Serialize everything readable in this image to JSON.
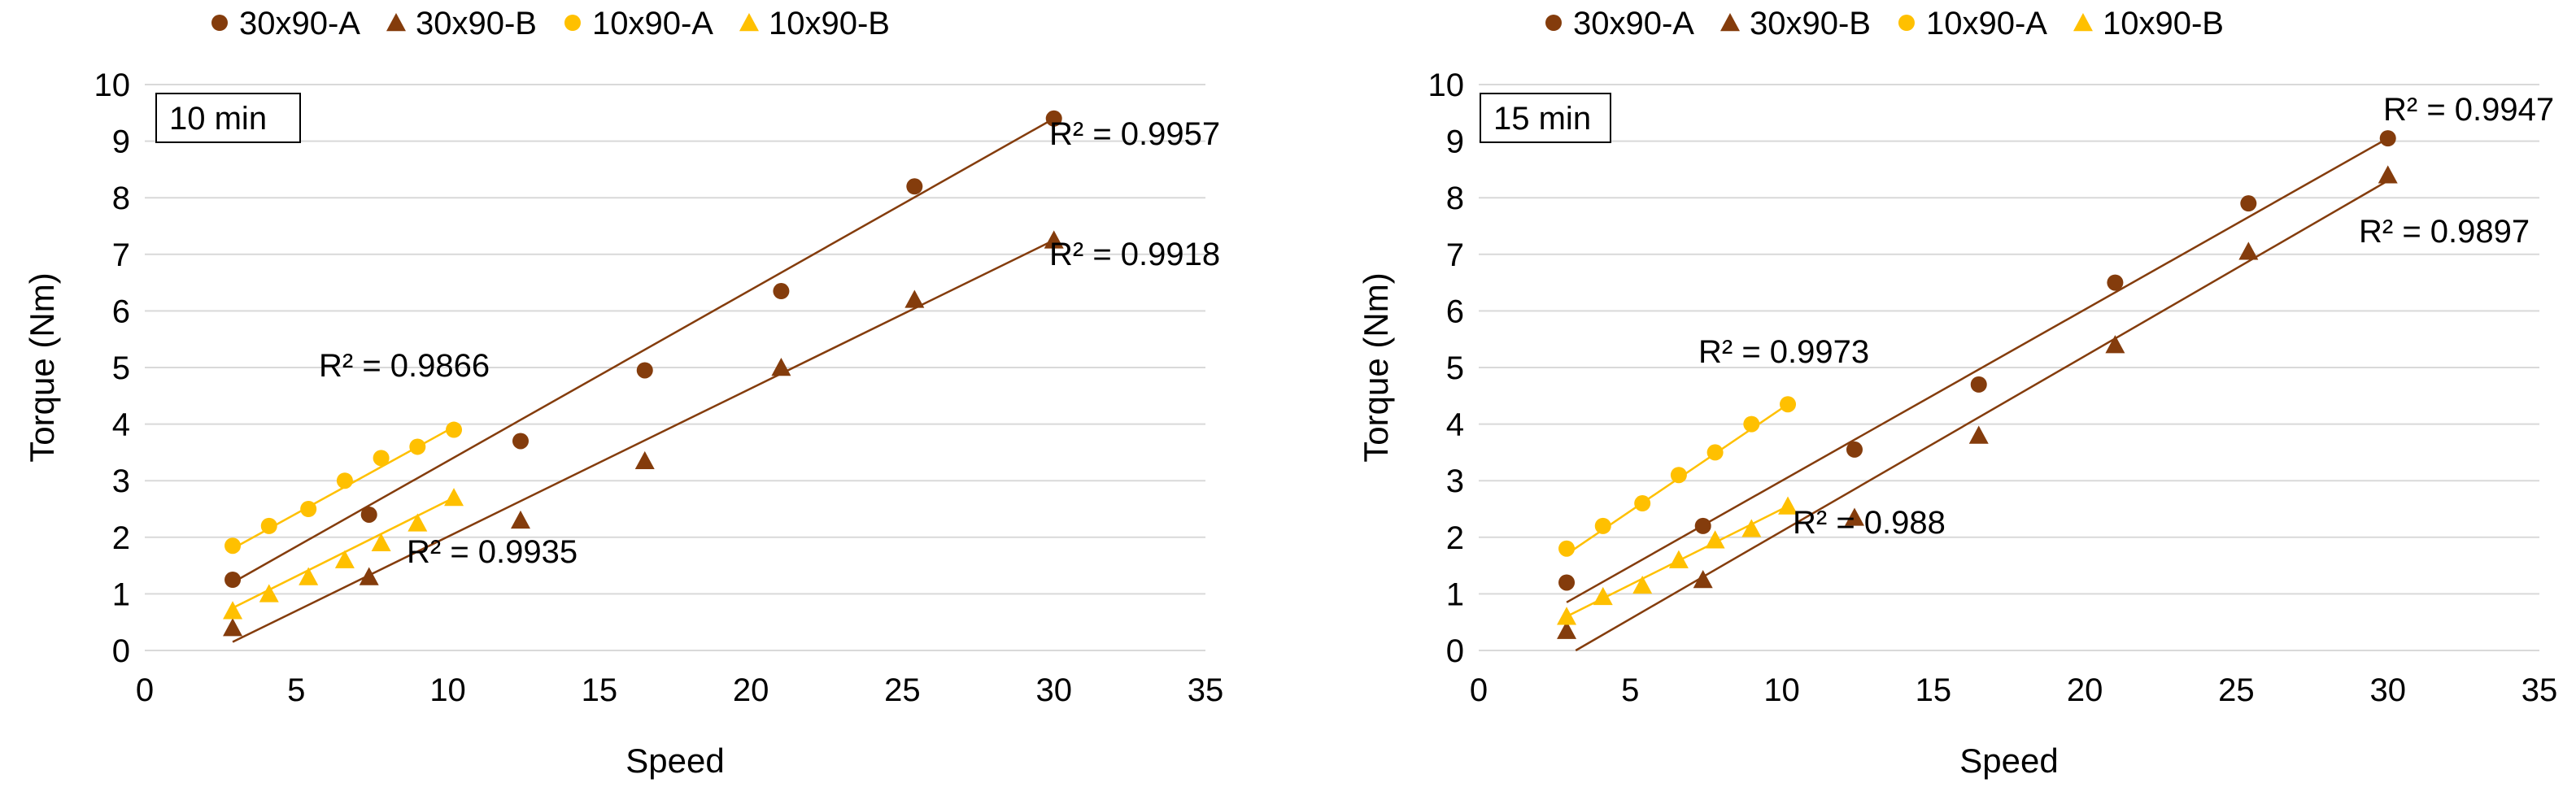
{
  "chart_data": [
    {
      "type": "scatter",
      "panel_label": "10 min",
      "xlabel": "Speed",
      "ylabel": "Torque (Nm)",
      "xlim": [
        0,
        35
      ],
      "ylim": [
        0,
        10
      ],
      "xticks": [
        "0",
        "5",
        "10",
        "15",
        "20",
        "25",
        "30",
        "35"
      ],
      "yticks": [
        "0",
        "1",
        "2",
        "3",
        "4",
        "5",
        "6",
        "7",
        "8",
        "9",
        "10"
      ],
      "grid": "horizontal",
      "legend_position": "top",
      "series": [
        {
          "name": "30x90-A",
          "marker": "circle",
          "color": "#843C0C",
          "x": [
            2.9,
            7.4,
            12.4,
            16.5,
            21.0,
            25.4,
            30.0
          ],
          "y": [
            1.25,
            2.4,
            3.7,
            4.95,
            6.35,
            8.2,
            9.4
          ],
          "trend": [
            [
              2.9,
              1.2
            ],
            [
              30.0,
              9.4
            ]
          ],
          "r2": "R² = 0.9957"
        },
        {
          "name": "30x90-B",
          "marker": "triangle",
          "color": "#843C0C",
          "x": [
            2.9,
            7.4,
            12.4,
            16.5,
            21.0,
            25.4,
            30.0
          ],
          "y": [
            0.4,
            1.3,
            2.3,
            3.35,
            5.0,
            6.2,
            7.25
          ],
          "trend": [
            [
              2.9,
              0.15
            ],
            [
              30.0,
              7.25
            ]
          ],
          "r2": "R² = 0.9918"
        },
        {
          "name": "10x90-A",
          "marker": "circle",
          "color": "#FFC000",
          "x": [
            2.9,
            4.1,
            5.4,
            6.6,
            7.8,
            9.0,
            10.2
          ],
          "y": [
            1.85,
            2.2,
            2.5,
            3.0,
            3.4,
            3.6,
            3.9
          ],
          "trend": [
            [
              2.9,
              1.8
            ],
            [
              10.2,
              3.95
            ]
          ],
          "r2": "R² = 0.9866"
        },
        {
          "name": "10x90-B",
          "marker": "triangle",
          "color": "#FFC000",
          "x": [
            2.9,
            4.1,
            5.4,
            6.6,
            7.8,
            9.0,
            10.2
          ],
          "y": [
            0.7,
            1.0,
            1.3,
            1.6,
            1.9,
            2.25,
            2.7
          ],
          "trend": [
            [
              2.9,
              0.75
            ],
            [
              10.2,
              2.7
            ]
          ],
          "r2": "R² = 0.9935"
        }
      ]
    },
    {
      "type": "scatter",
      "panel_label": "15 min",
      "xlabel": "Speed",
      "ylabel": "Torque (Nm)",
      "xlim": [
        0,
        35
      ],
      "ylim": [
        0,
        10
      ],
      "xticks": [
        "0",
        "5",
        "10",
        "15",
        "20",
        "25",
        "30",
        "35"
      ],
      "yticks": [
        "0",
        "1",
        "2",
        "3",
        "4",
        "5",
        "6",
        "7",
        "8",
        "9",
        "10"
      ],
      "grid": "horizontal",
      "legend_position": "top",
      "series": [
        {
          "name": "30x90-A",
          "marker": "circle",
          "color": "#843C0C",
          "x": [
            2.9,
            7.4,
            12.4,
            16.5,
            21.0,
            25.4,
            30.0
          ],
          "y": [
            1.2,
            2.2,
            3.55,
            4.7,
            6.5,
            7.9,
            9.05
          ],
          "trend": [
            [
              2.9,
              0.85
            ],
            [
              30.0,
              9.05
            ]
          ],
          "r2": "R² = 0.9947"
        },
        {
          "name": "30x90-B",
          "marker": "triangle",
          "color": "#843C0C",
          "x": [
            2.9,
            7.4,
            12.4,
            16.5,
            21.0,
            25.4,
            30.0
          ],
          "y": [
            0.35,
            1.25,
            2.35,
            3.8,
            5.4,
            7.05,
            8.4
          ],
          "trend": [
            [
              3.2,
              0.0
            ],
            [
              30.0,
              8.3
            ]
          ],
          "r2": "R² = 0.9897"
        },
        {
          "name": "10x90-A",
          "marker": "circle",
          "color": "#FFC000",
          "x": [
            2.9,
            4.1,
            5.4,
            6.6,
            7.8,
            9.0,
            10.2
          ],
          "y": [
            1.8,
            2.2,
            2.6,
            3.1,
            3.5,
            4.0,
            4.35
          ],
          "trend": [
            [
              2.9,
              1.7
            ],
            [
              10.2,
              4.35
            ]
          ],
          "r2": "R² = 0.9973"
        },
        {
          "name": "10x90-B",
          "marker": "triangle",
          "color": "#FFC000",
          "x": [
            2.9,
            4.1,
            5.4,
            6.6,
            7.8,
            9.0,
            10.2
          ],
          "y": [
            0.6,
            0.95,
            1.15,
            1.6,
            1.95,
            2.15,
            2.55
          ],
          "trend": [
            [
              2.9,
              0.6
            ],
            [
              10.2,
              2.55
            ]
          ],
          "r2": "R² = 0.988"
        }
      ]
    }
  ]
}
